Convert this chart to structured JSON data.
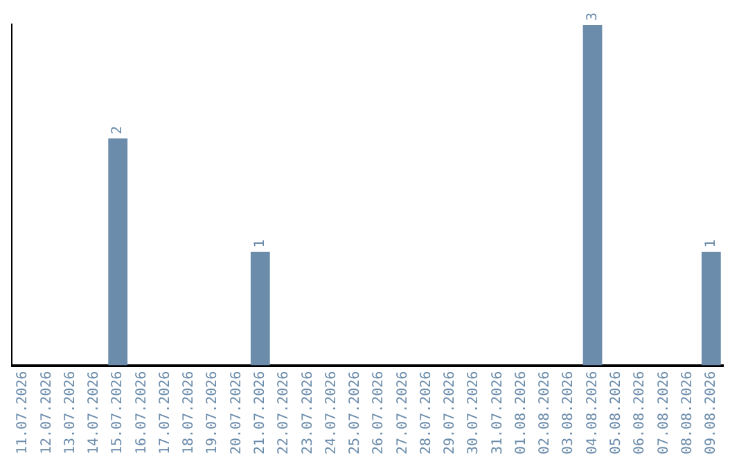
{
  "chart_data": {
    "type": "bar",
    "categories": [
      "11.07.2026",
      "12.07.2026",
      "13.07.2026",
      "14.07.2026",
      "15.07.2026",
      "16.07.2026",
      "17.07.2026",
      "18.07.2026",
      "19.07.2026",
      "20.07.2026",
      "21.07.2026",
      "22.07.2026",
      "23.07.2026",
      "24.07.2026",
      "25.07.2026",
      "26.07.2026",
      "27.07.2026",
      "28.07.2026",
      "29.07.2026",
      "30.07.2026",
      "31.07.2026",
      "01.08.2026",
      "02.08.2026",
      "03.08.2026",
      "04.08.2026",
      "05.08.2026",
      "06.08.2026",
      "07.08.2026",
      "08.08.2026",
      "09.08.2026"
    ],
    "values": [
      0,
      0,
      0,
      0,
      2,
      0,
      0,
      0,
      0,
      0,
      1,
      0,
      0,
      0,
      0,
      0,
      0,
      0,
      0,
      0,
      0,
      0,
      0,
      0,
      3,
      0,
      0,
      0,
      0,
      1
    ],
    "value_labels": [
      null,
      null,
      null,
      null,
      "2",
      null,
      null,
      null,
      null,
      null,
      "1",
      null,
      null,
      null,
      null,
      null,
      null,
      null,
      null,
      null,
      null,
      null,
      null,
      null,
      "3",
      null,
      null,
      null,
      null,
      "1"
    ],
    "color": "#6b8cab",
    "tick_labels": "x",
    "grid": false,
    "legend": false
  }
}
